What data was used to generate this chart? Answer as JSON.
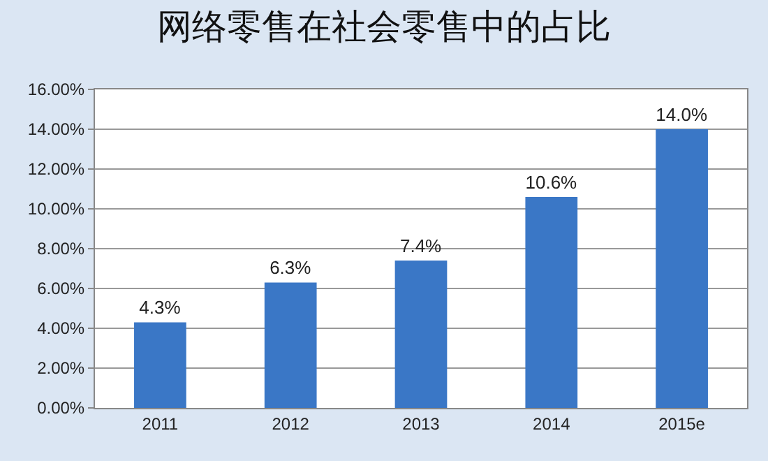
{
  "chart_data": {
    "type": "bar",
    "title": "网络零售在社会零售中的占比",
    "categories": [
      "2011",
      "2012",
      "2013",
      "2014",
      "2015e"
    ],
    "values": [
      4.3,
      6.3,
      7.4,
      10.6,
      14.0
    ],
    "value_labels": [
      "4.3%",
      "6.3%",
      "7.4%",
      "10.6%",
      "14.0%"
    ],
    "color": "#3a77c6",
    "ylim": [
      0,
      16
    ],
    "yticks": [
      {
        "value": 0,
        "label": "0.00%"
      },
      {
        "value": 2,
        "label": "2.00%"
      },
      {
        "value": 4,
        "label": "4.00%"
      },
      {
        "value": 6,
        "label": "6.00%"
      },
      {
        "value": 8,
        "label": "8.00%"
      },
      {
        "value": 10,
        "label": "10.00%"
      },
      {
        "value": 12,
        "label": "12.00%"
      },
      {
        "value": 14,
        "label": "14.00%"
      },
      {
        "value": 16,
        "label": "16.00%"
      }
    ],
    "grid": "y"
  }
}
